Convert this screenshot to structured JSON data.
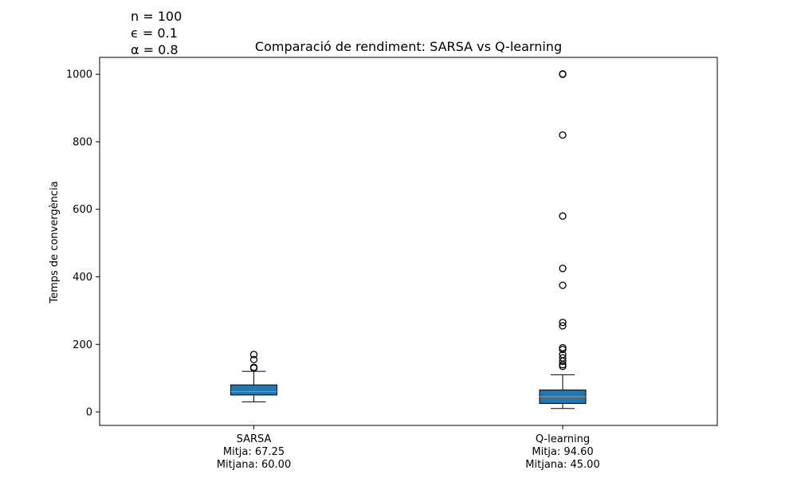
{
  "chart_data": {
    "type": "box",
    "title": "Comparació de rendiment: SARSA vs Q-learning",
    "ylabel": "Temps de convergència",
    "xlabel": "",
    "ylim": [
      -40,
      1050
    ],
    "yticks": [
      0,
      200,
      400,
      600,
      800,
      1000
    ],
    "grid": false,
    "box_color": "#1f77b4",
    "median_color": "#ff7f0e",
    "annotations": [
      "n = 100",
      "ϵ = 0.1",
      "α = 0.8"
    ],
    "series": [
      {
        "name": "SARSA",
        "label_lines": [
          "SARSA",
          "Mitja: 67.25",
          "Mitjana: 60.00"
        ],
        "whisker_low": 30,
        "q1": 50,
        "median": 60,
        "q3": 80,
        "whisker_high": 120,
        "outliers": [
          130,
          132,
          155,
          170
        ]
      },
      {
        "name": "Q-learning",
        "label_lines": [
          "Q-learning",
          "Mitja: 94.60",
          "Mitjana: 45.00"
        ],
        "whisker_low": 10,
        "q1": 25,
        "median": 45,
        "q3": 65,
        "whisker_high": 110,
        "outliers": [
          135,
          140,
          150,
          160,
          170,
          185,
          190,
          255,
          265,
          375,
          425,
          580,
          820,
          1000,
          1001
        ]
      }
    ]
  }
}
